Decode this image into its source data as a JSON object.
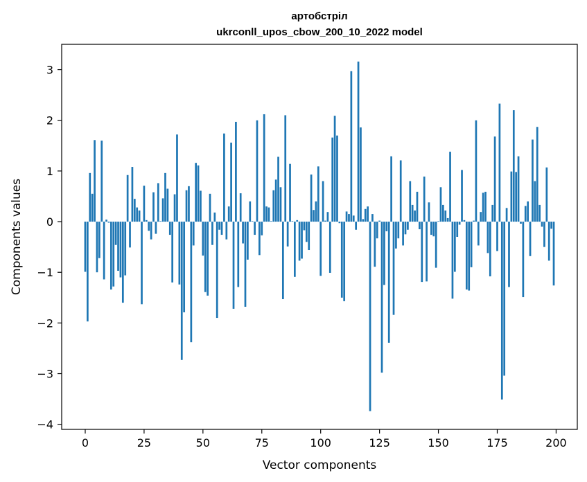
{
  "chart_data": {
    "type": "bar",
    "title": "артобстріл",
    "subtitle": "ukrconll_upos_cbow_200_10_2022 model",
    "xlabel": "Vector components",
    "ylabel": "Components values",
    "xlim": [
      -10,
      209
    ],
    "ylim": [
      -4.1,
      3.5
    ],
    "xticks": [
      0,
      25,
      50,
      75,
      100,
      125,
      150,
      175,
      200
    ],
    "yticks": [
      -4,
      -3,
      -2,
      -1,
      0,
      1,
      2,
      3
    ],
    "ytick_labels": [
      "−4",
      "−3",
      "−2",
      "−1",
      "0",
      "1",
      "2",
      "3"
    ],
    "grid": false,
    "bar_color": "#1f77b4",
    "values": [
      -0.99,
      -1.97,
      0.96,
      0.55,
      1.61,
      -1.0,
      -0.72,
      1.6,
      -1.14,
      0.04,
      -0.02,
      -1.34,
      -1.28,
      -0.46,
      -0.97,
      -1.1,
      -1.6,
      -1.06,
      0.92,
      -0.51,
      1.08,
      0.45,
      0.28,
      0.22,
      -1.63,
      0.71,
      0.03,
      -0.18,
      -0.35,
      0.58,
      -0.24,
      0.76,
      0.01,
      0.46,
      0.96,
      0.65,
      -0.26,
      -1.2,
      0.54,
      1.72,
      -1.24,
      -2.73,
      -1.79,
      0.62,
      0.7,
      -2.38,
      -0.47,
      1.16,
      1.11,
      0.61,
      -0.67,
      -1.39,
      -1.46,
      0.55,
      -0.46,
      0.18,
      -1.9,
      -0.16,
      -0.26,
      1.74,
      -0.35,
      0.3,
      1.56,
      -1.72,
      1.97,
      -1.29,
      0.56,
      -0.43,
      -1.68,
      -0.75,
      0.4,
      0.01,
      -0.26,
      2.0,
      -0.66,
      -0.27,
      2.12,
      0.3,
      0.28,
      0.01,
      0.62,
      0.83,
      1.28,
      0.68,
      -1.53,
      2.1,
      -0.49,
      1.14,
      0.01,
      -1.09,
      0.03,
      -0.77,
      -0.73,
      -0.17,
      -0.4,
      -0.56,
      0.93,
      0.23,
      0.4,
      1.09,
      -1.07,
      0.8,
      0.02,
      0.19,
      -1.01,
      1.66,
      2.09,
      1.7,
      -0.03,
      -1.5,
      -1.57,
      0.2,
      0.15,
      2.97,
      0.12,
      -0.16,
      3.16,
      1.86,
      0.05,
      0.25,
      0.3,
      -3.74,
      0.15,
      -0.89,
      -0.33,
      0.02,
      -2.98,
      -1.25,
      -0.19,
      -2.39,
      1.29,
      -1.84,
      -0.53,
      -0.33,
      1.21,
      -0.47,
      -0.25,
      -0.16,
      0.8,
      0.33,
      0.22,
      0.59,
      -0.15,
      -1.19,
      0.89,
      -1.18,
      0.38,
      -0.26,
      -0.29,
      -0.91,
      0.01,
      0.68,
      0.33,
      0.22,
      0.07,
      1.38,
      -1.52,
      -0.99,
      -0.3,
      -0.06,
      1.02,
      0.03,
      -1.34,
      -1.36,
      -0.9,
      0.02,
      2.0,
      -0.47,
      0.19,
      0.57,
      0.59,
      -0.62,
      -1.08,
      0.33,
      1.68,
      -0.58,
      2.33,
      -3.51,
      -3.04,
      0.27,
      -1.29,
      0.99,
      2.2,
      0.98,
      1.29,
      -0.04,
      -1.49,
      0.31,
      0.4,
      -0.68,
      1.62,
      0.8,
      1.87,
      0.33,
      -0.1,
      -0.5,
      1.07,
      -0.77,
      -0.14,
      -1.26
    ]
  }
}
